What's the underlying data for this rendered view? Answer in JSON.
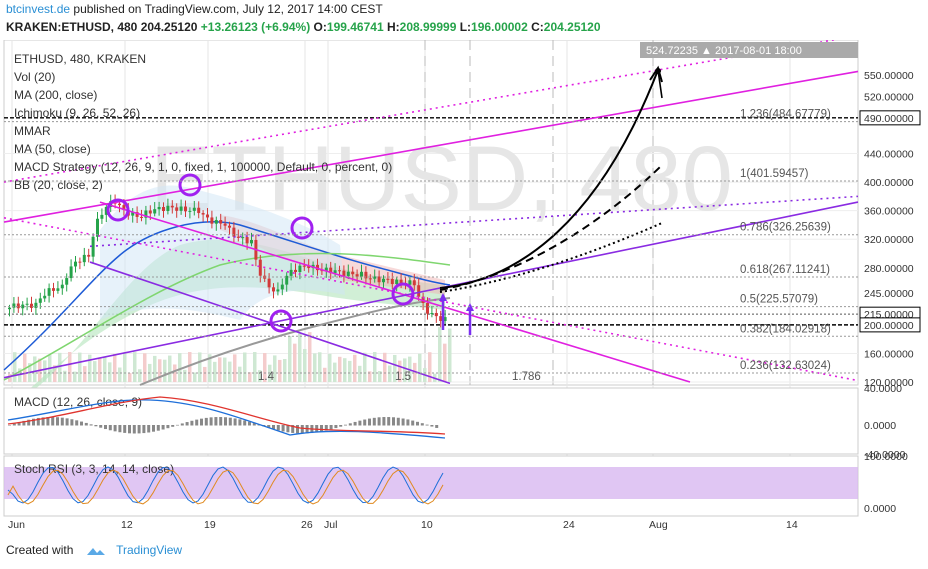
{
  "header": {
    "site": "btcinvest.de",
    "published": "published on TradingView.com, July 12, 2017 14:00 CEST",
    "symbol": "KRAKEN:ETHUSD, 480",
    "last": "204.25120",
    "change": "+13.26123 (+6.94%)",
    "o_label": "O:",
    "o": "199.46741",
    "h_label": "H:",
    "h": "208.99999",
    "l_label": "L:",
    "l": "196.00002",
    "c_label": "C:",
    "c": "204.25120"
  },
  "legend": [
    "ETHUSD, 480, KRAKEN",
    "Vol (20)",
    "MA (200, close)",
    "Ichimoku (9, 26, 52, 26)",
    "MMAR",
    "MA (50, close)",
    "MACD Strategy (12, 26, 9, 1, 0, fixed, 1, 100000, Default, 0, percent, 0)",
    "BB (20, close, 2)"
  ],
  "watermark": "ETHUSD, 480",
  "crosshair_label": "524.72235 ▲ 2017-08-01 18:00",
  "price_axis": [
    "550.00000",
    "520.00000",
    "490.00000",
    "440.00000",
    "400.00000",
    "360.00000",
    "320.00000",
    "280.00000",
    "245.00000",
    "215.00000",
    "200.00000",
    "160.00000",
    "120.00000"
  ],
  "fib_levels": [
    "1.236(484.67779)",
    "1(401.59457)",
    "0.786(326.25639)",
    "0.618(267.11241)",
    "0.5(225.57079)",
    "0.382(184.02918)",
    "0.236(132.63024)"
  ],
  "vol_labels": [
    "1.4",
    "1.5",
    "1.786"
  ],
  "time_axis": [
    "Jun",
    "12",
    "19",
    "26",
    "Jul",
    "10",
    "24",
    "Aug",
    "14"
  ],
  "macd": {
    "label": "MACD (12, 26, close, 9)",
    "axis": [
      "40.0000",
      "0.0000",
      "-40.0000"
    ]
  },
  "stoch": {
    "label": "Stoch RSI (3, 3, 14, 14, close)",
    "axis": [
      "100.0000",
      "0.0000"
    ]
  },
  "footer": {
    "created": "Created with",
    "brand": "TradingView"
  },
  "colors": {
    "up": "#26a34a",
    "down": "#d23a3a",
    "magenta": "#e020e0",
    "purple": "#8a2be2",
    "macd": "#1e6fd9",
    "signal": "#e0342e",
    "stoch_bg": "#d8b8f0"
  },
  "chart_data": {
    "type": "candlestick",
    "title": "ETHUSD, 480, KRAKEN",
    "ylim": [
      120,
      550
    ],
    "x_dates": [
      "2017-06-01",
      "2017-06-05",
      "2017-06-09",
      "2017-06-12",
      "2017-06-14",
      "2017-06-16",
      "2017-06-19",
      "2017-06-21",
      "2017-06-24",
      "2017-06-26",
      "2017-06-28",
      "2017-07-01",
      "2017-07-03",
      "2017-07-06",
      "2017-07-08",
      "2017-07-10",
      "2017-07-12"
    ],
    "close": [
      228,
      255,
      300,
      380,
      350,
      365,
      360,
      340,
      315,
      240,
      285,
      275,
      270,
      262,
      258,
      205,
      204
    ],
    "projection": {
      "target": 524.72,
      "target_date": "2017-08-01",
      "resistance": 490,
      "support": 200
    }
  }
}
